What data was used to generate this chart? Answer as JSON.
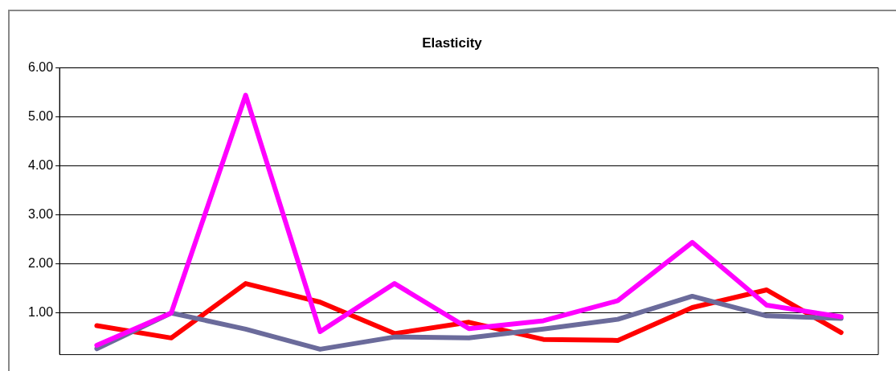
{
  "chart_data": {
    "type": "line",
    "title": "Elasticity",
    "categories": [
      null,
      null,
      null,
      null,
      null,
      null,
      null,
      null,
      null,
      null,
      null
    ],
    "series": [
      {
        "color": "#ff00ff",
        "values": [
          0.34,
          1.0,
          5.44,
          0.62,
          1.6,
          0.68,
          0.84,
          1.25,
          2.44,
          1.16,
          0.92
        ]
      },
      {
        "color": "#6b6b9b",
        "values": [
          0.27,
          1.0,
          0.67,
          0.26,
          0.51,
          0.49,
          0.67,
          0.87,
          1.34,
          0.94,
          0.89
        ]
      },
      {
        "color": "#ff0000",
        "values": [
          0.74,
          0.49,
          1.6,
          1.22,
          0.58,
          0.81,
          0.46,
          0.44,
          1.11,
          1.47,
          0.6
        ]
      }
    ],
    "ylim": [
      0.15,
      6
    ],
    "yticks": [
      {
        "value": 1,
        "label": "1.00"
      },
      {
        "value": 2,
        "label": "2.00"
      },
      {
        "value": 3,
        "label": "3.00"
      },
      {
        "value": 4,
        "label": "4.00"
      },
      {
        "value": 5,
        "label": "5.00"
      },
      {
        "value": 6,
        "label": "6.00"
      }
    ],
    "grid": "y",
    "legend": false,
    "marker": "none",
    "line_style": "solid"
  }
}
